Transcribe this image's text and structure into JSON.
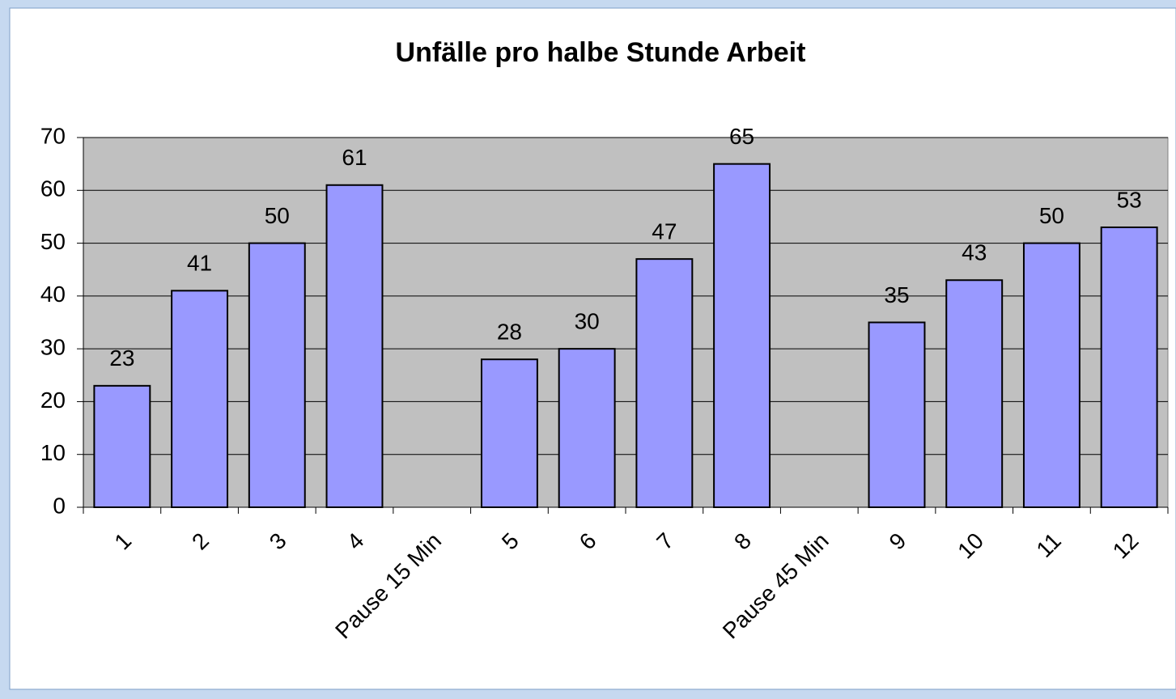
{
  "chart_data": {
    "type": "bar",
    "title": "Unfälle pro halbe Stunde Arbeit",
    "categories": [
      "1",
      "2",
      "3",
      "4",
      "Pause 15 Min",
      "5",
      "6",
      "7",
      "8",
      "Pause 45 Min",
      "9",
      "10",
      "11",
      "12"
    ],
    "values": [
      23,
      41,
      50,
      61,
      null,
      28,
      30,
      47,
      65,
      null,
      35,
      43,
      50,
      53
    ],
    "color": "#9999ff",
    "ylim": [
      0,
      70
    ],
    "yticks": [
      0,
      10,
      20,
      30,
      40,
      50,
      60,
      70
    ],
    "grid": true
  }
}
